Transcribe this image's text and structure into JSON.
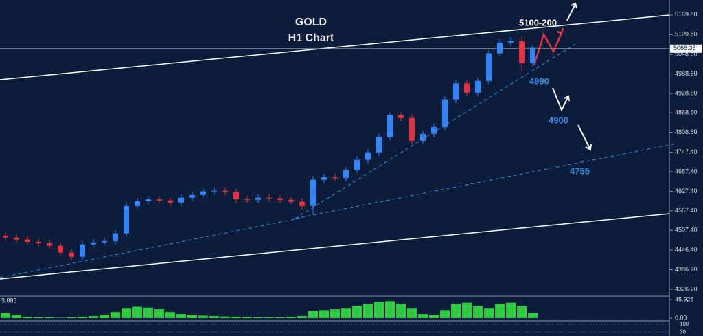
{
  "chart_data": {
    "type": "candlestick",
    "title": "GOLD",
    "subtitle": "H1 Chart",
    "annotations": [
      "5100-200",
      "4990",
      "4900",
      "4755"
    ],
    "open": [
      4490,
      4485,
      4479,
      4472,
      4468,
      4460,
      4439,
      4426,
      4464,
      4470,
      4474,
      4498,
      4582,
      4597,
      4603,
      4599,
      4593,
      4608,
      4616,
      4627,
      4629,
      4625,
      4603,
      4601,
      4608,
      4606,
      4601,
      4595,
      4582,
      4663,
      4671,
      4668,
      4692,
      4724,
      4747,
      4794,
      4861,
      4853,
      4783,
      4804,
      4825,
      4910,
      4959,
      4931,
      4967,
      5052,
      5085,
      5090,
      5022
    ],
    "high": [
      4500,
      4495,
      4489,
      4482,
      4478,
      4470,
      4449,
      4474,
      4480,
      4484,
      4508,
      4592,
      4607,
      4613,
      4613,
      4609,
      4618,
      4626,
      4637,
      4639,
      4639,
      4635,
      4613,
      4618,
      4618,
      4616,
      4611,
      4605,
      4673,
      4681,
      4681,
      4702,
      4734,
      4757,
      4804,
      4871,
      4871,
      4863,
      4814,
      4835,
      4920,
      4969,
      4969,
      4977,
      5062,
      5095,
      5100,
      5100,
      5079
    ],
    "low": [
      4475,
      4469,
      4462,
      4458,
      4450,
      4429,
      4416,
      4416,
      4454,
      4460,
      4464,
      4488,
      4572,
      4587,
      4589,
      4583,
      4583,
      4598,
      4606,
      4617,
      4615,
      4593,
      4591,
      4591,
      4596,
      4591,
      4585,
      4572,
      4555,
      4653,
      4658,
      4658,
      4682,
      4714,
      4737,
      4784,
      4843,
      4773,
      4773,
      4794,
      4815,
      4900,
      4921,
      4921,
      4957,
      5042,
      5075,
      4995,
      5012
    ],
    "close": [
      4485,
      4479,
      4472,
      4468,
      4460,
      4439,
      4426,
      4464,
      4470,
      4474,
      4498,
      4582,
      4597,
      4603,
      4599,
      4593,
      4608,
      4616,
      4627,
      4629,
      4625,
      4603,
      4601,
      4608,
      4606,
      4601,
      4595,
      4582,
      4663,
      4671,
      4668,
      4692,
      4724,
      4747,
      4794,
      4861,
      4853,
      4783,
      4804,
      4825,
      4910,
      4959,
      4931,
      4967,
      5052,
      5085,
      5090,
      5022,
      5069
    ],
    "up_color": "#2f86ff",
    "down_color": "#e8333f",
    "ylim": [
      4307,
      5216
    ],
    "yticks": [
      {
        "value": 5169.8,
        "label": "5169.80"
      },
      {
        "value": 5109.8,
        "label": "5109.80"
      },
      {
        "value": 5048.6,
        "label": "5048.60"
      },
      {
        "value": 4988.6,
        "label": "4988.60"
      },
      {
        "value": 4928.6,
        "label": "4928.60"
      },
      {
        "value": 4868.6,
        "label": "4868.60"
      },
      {
        "value": 4808.6,
        "label": "4808.60"
      },
      {
        "value": 4747.4,
        "label": "4747.40"
      },
      {
        "value": 4687.4,
        "label": "4687.40"
      },
      {
        "value": 4627.4,
        "label": "4627.40"
      },
      {
        "value": 4567.4,
        "label": "4567.40"
      },
      {
        "value": 4507.4,
        "label": "4507.40"
      },
      {
        "value": 4446.4,
        "label": "4446.40"
      },
      {
        "value": 4386.2,
        "label": "4386.20"
      },
      {
        "value": 4326.2,
        "label": "4326.20"
      }
    ],
    "last_price": 5066.38,
    "oscillator": {
      "current": 3.888,
      "color": "#2ecc40",
      "values": [
        12,
        8,
        3,
        2,
        2,
        1,
        2,
        3,
        5,
        8,
        15,
        25,
        28,
        26,
        22,
        15,
        10,
        8,
        6,
        5,
        4,
        3,
        3,
        2,
        2,
        2,
        3,
        5,
        18,
        20,
        22,
        25,
        30,
        35,
        40,
        42,
        35,
        25,
        10,
        8,
        20,
        35,
        38,
        30,
        25,
        35,
        38,
        30,
        12
      ],
      "ylim": [
        0,
        45.928
      ],
      "yticks": [
        45.928,
        {
          "value": 0,
          "label": "0.00"
        }
      ]
    },
    "lower_panel": {
      "ylim": [
        0,
        100
      ],
      "yticks": [
        100,
        30
      ]
    }
  }
}
